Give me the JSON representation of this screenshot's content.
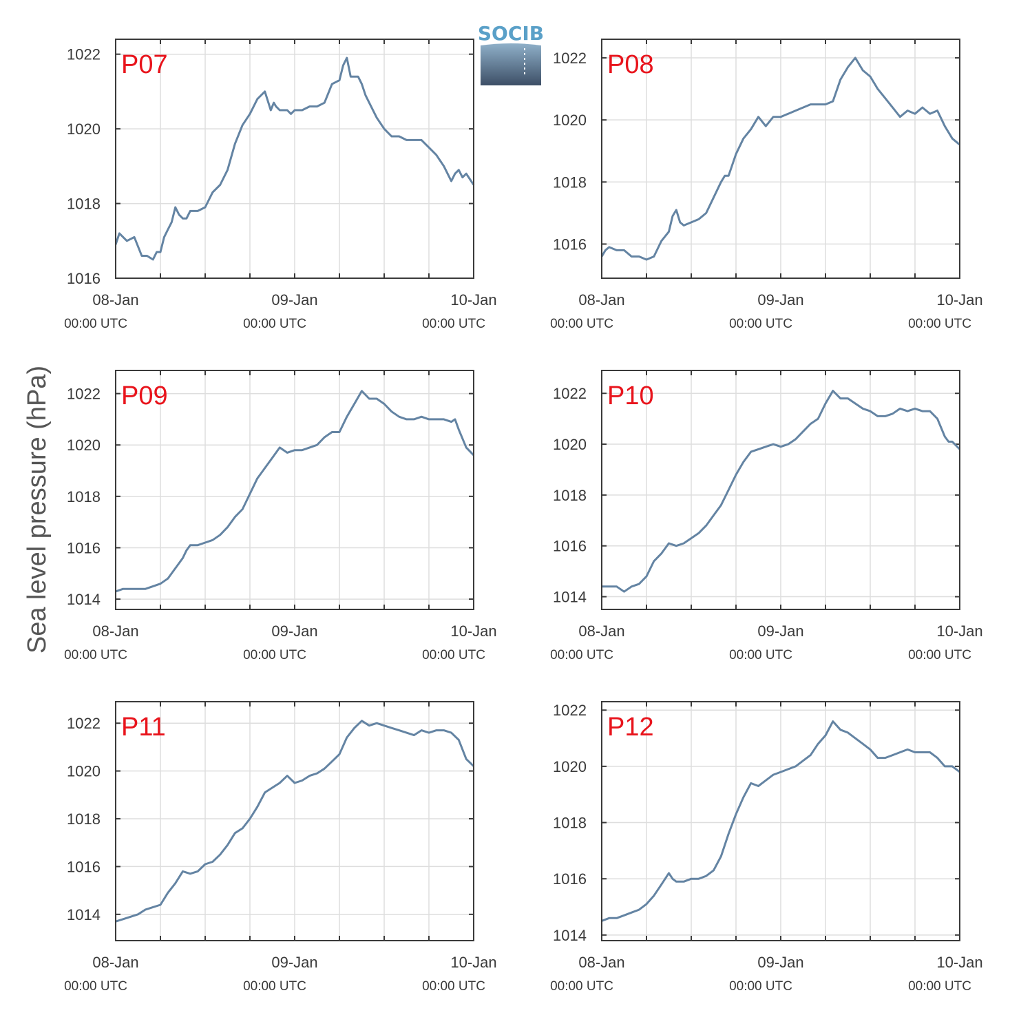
{
  "ylabel": "Sea level pressure (hPa)",
  "logo": {
    "text": "SOCIB"
  },
  "colors": {
    "line": "#6484a3",
    "panel_label": "#e8141c",
    "grid": "#dedede",
    "axis": "#3a3a3a"
  },
  "x_tick_labels": [
    {
      "day": "08-Jan",
      "time": "00:00 UTC"
    },
    {
      "day": "09-Jan",
      "time": "00:00 UTC"
    },
    {
      "day": "10-Jan",
      "time": "00:00 UTC"
    }
  ],
  "chart_data": [
    {
      "type": "line",
      "title": "P07",
      "x_unit": "hours since 08-Jan 00:00 UTC",
      "xlim": [
        0,
        48
      ],
      "ylim": [
        1016,
        1022.4
      ],
      "yticks": [
        1016,
        1018,
        1020,
        1022
      ],
      "x": [
        0,
        0.5,
        1.5,
        2.5,
        3.5,
        4.2,
        5,
        5.5,
        6,
        6.5,
        7,
        7.5,
        8,
        8.5,
        9,
        9.5,
        10,
        11,
        12,
        13,
        14,
        15,
        16,
        17,
        18,
        19,
        20,
        20.8,
        21.2,
        21.5,
        22,
        22.5,
        23,
        23.5,
        24,
        25,
        26,
        27,
        28,
        29,
        30,
        30.5,
        31,
        31.5,
        32,
        32.5,
        33,
        33.5,
        34,
        35,
        36,
        37,
        38,
        39,
        40,
        41,
        42,
        43,
        44,
        45,
        45.5,
        46,
        46.5,
        47,
        48
      ],
      "values": [
        1016.9,
        1017.2,
        1017.0,
        1017.1,
        1016.6,
        1016.6,
        1016.5,
        1016.7,
        1016.7,
        1017.1,
        1017.3,
        1017.5,
        1017.9,
        1017.7,
        1017.6,
        1017.6,
        1017.8,
        1017.8,
        1017.9,
        1018.3,
        1018.5,
        1018.9,
        1019.6,
        1020.1,
        1020.4,
        1020.8,
        1021.0,
        1020.5,
        1020.7,
        1020.6,
        1020.5,
        1020.5,
        1020.5,
        1020.4,
        1020.5,
        1020.5,
        1020.6,
        1020.6,
        1020.7,
        1021.2,
        1021.3,
        1021.7,
        1021.9,
        1021.4,
        1021.4,
        1021.4,
        1021.2,
        1020.9,
        1020.7,
        1020.3,
        1020.0,
        1019.8,
        1019.8,
        1019.7,
        1019.7,
        1019.7,
        1019.5,
        1019.3,
        1019.0,
        1018.6,
        1018.8,
        1018.9,
        1018.7,
        1018.8,
        1018.5
      ]
    },
    {
      "type": "line",
      "title": "P08",
      "x_unit": "hours since 08-Jan 00:00 UTC",
      "xlim": [
        0,
        48
      ],
      "ylim": [
        1014.9,
        1022.6
      ],
      "yticks": [
        1016,
        1018,
        1020,
        1022
      ],
      "x": [
        0,
        0.5,
        1,
        2,
        3,
        4,
        5,
        6,
        7,
        8,
        9,
        9.5,
        10,
        10.5,
        11,
        12,
        13,
        14,
        15,
        16,
        16.5,
        17,
        18,
        19,
        20,
        21,
        22,
        23,
        24,
        25,
        26,
        27,
        28,
        29,
        30,
        31,
        32,
        33,
        34,
        35,
        36,
        37,
        38,
        39,
        40,
        41,
        42,
        43,
        44,
        45,
        46,
        47,
        48
      ],
      "values": [
        1015.6,
        1015.8,
        1015.9,
        1015.8,
        1015.8,
        1015.6,
        1015.6,
        1015.5,
        1015.6,
        1016.1,
        1016.4,
        1016.9,
        1017.1,
        1016.7,
        1016.6,
        1016.7,
        1016.8,
        1017.0,
        1017.5,
        1018.0,
        1018.2,
        1018.2,
        1018.9,
        1019.4,
        1019.7,
        1020.1,
        1019.8,
        1020.1,
        1020.1,
        1020.2,
        1020.3,
        1020.4,
        1020.5,
        1020.5,
        1020.5,
        1020.6,
        1021.3,
        1021.7,
        1022.0,
        1021.6,
        1021.4,
        1021.0,
        1020.7,
        1020.4,
        1020.1,
        1020.3,
        1020.2,
        1020.4,
        1020.2,
        1020.3,
        1019.8,
        1019.4,
        1019.2
      ]
    },
    {
      "type": "line",
      "title": "P09",
      "x_unit": "hours since 08-Jan 00:00 UTC",
      "xlim": [
        0,
        48
      ],
      "ylim": [
        1013.6,
        1022.9
      ],
      "yticks": [
        1014,
        1016,
        1018,
        1020,
        1022
      ],
      "x": [
        0,
        1,
        2,
        3,
        4,
        5,
        6,
        7,
        8,
        9,
        9.5,
        10,
        11,
        12,
        13,
        14,
        15,
        16,
        17,
        18,
        19,
        20,
        21,
        22,
        23,
        24,
        25,
        26,
        27,
        28,
        29,
        30,
        31,
        32,
        33,
        34,
        35,
        36,
        37,
        38,
        39,
        40,
        41,
        42,
        43,
        44,
        45,
        45.5,
        46,
        47,
        48
      ],
      "values": [
        1014.3,
        1014.4,
        1014.4,
        1014.4,
        1014.4,
        1014.5,
        1014.6,
        1014.8,
        1015.2,
        1015.6,
        1015.9,
        1016.1,
        1016.1,
        1016.2,
        1016.3,
        1016.5,
        1016.8,
        1017.2,
        1017.5,
        1018.1,
        1018.7,
        1019.1,
        1019.5,
        1019.9,
        1019.7,
        1019.8,
        1019.8,
        1019.9,
        1020.0,
        1020.3,
        1020.5,
        1020.5,
        1021.1,
        1021.6,
        1022.1,
        1021.8,
        1021.8,
        1021.6,
        1021.3,
        1021.1,
        1021.0,
        1021.0,
        1021.1,
        1021.0,
        1021.0,
        1021.0,
        1020.9,
        1021.0,
        1020.6,
        1019.9,
        1019.6
      ]
    },
    {
      "type": "line",
      "title": "P10",
      "x_unit": "hours since 08-Jan 00:00 UTC",
      "xlim": [
        0,
        48
      ],
      "ylim": [
        1013.5,
        1022.9
      ],
      "yticks": [
        1014,
        1016,
        1018,
        1020,
        1022
      ],
      "x": [
        0,
        1,
        2,
        3,
        4,
        5,
        6,
        7,
        8,
        9,
        10,
        11,
        12,
        13,
        14,
        15,
        16,
        17,
        18,
        19,
        20,
        21,
        22,
        23,
        24,
        25,
        26,
        27,
        28,
        29,
        30,
        31,
        32,
        33,
        34,
        35,
        36,
        37,
        38,
        39,
        40,
        41,
        42,
        43,
        44,
        45,
        46,
        46.5,
        47,
        48
      ],
      "values": [
        1014.4,
        1014.4,
        1014.4,
        1014.2,
        1014.4,
        1014.5,
        1014.8,
        1015.4,
        1015.7,
        1016.1,
        1016.0,
        1016.1,
        1016.3,
        1016.5,
        1016.8,
        1017.2,
        1017.6,
        1018.2,
        1018.8,
        1019.3,
        1019.7,
        1019.8,
        1019.9,
        1020.0,
        1019.9,
        1020.0,
        1020.2,
        1020.5,
        1020.8,
        1021.0,
        1021.6,
        1022.1,
        1021.8,
        1021.8,
        1021.6,
        1021.4,
        1021.3,
        1021.1,
        1021.1,
        1021.2,
        1021.4,
        1021.3,
        1021.4,
        1021.3,
        1021.3,
        1021.0,
        1020.3,
        1020.1,
        1020.1,
        1019.8
      ]
    },
    {
      "type": "line",
      "title": "P11",
      "x_unit": "hours since 08-Jan 00:00 UTC",
      "xlim": [
        0,
        48
      ],
      "ylim": [
        1012.9,
        1022.9
      ],
      "yticks": [
        1014,
        1016,
        1018,
        1020,
        1022
      ],
      "x": [
        0,
        1,
        2,
        3,
        4,
        5,
        6,
        7,
        8,
        9,
        10,
        11,
        12,
        13,
        14,
        15,
        16,
        17,
        18,
        19,
        20,
        21,
        22,
        23,
        24,
        25,
        26,
        27,
        28,
        29,
        30,
        31,
        32,
        33,
        34,
        35,
        36,
        37,
        38,
        39,
        40,
        41,
        42,
        43,
        44,
        45,
        46,
        47,
        48
      ],
      "values": [
        1013.7,
        1013.8,
        1013.9,
        1014.0,
        1014.2,
        1014.3,
        1014.4,
        1014.9,
        1015.3,
        1015.8,
        1015.7,
        1015.8,
        1016.1,
        1016.2,
        1016.5,
        1016.9,
        1017.4,
        1017.6,
        1018.0,
        1018.5,
        1019.1,
        1019.3,
        1019.5,
        1019.8,
        1019.5,
        1019.6,
        1019.8,
        1019.9,
        1020.1,
        1020.4,
        1020.7,
        1021.4,
        1021.8,
        1022.1,
        1021.9,
        1022.0,
        1021.9,
        1021.8,
        1021.7,
        1021.6,
        1021.5,
        1021.7,
        1021.6,
        1021.7,
        1021.7,
        1021.6,
        1021.3,
        1020.5,
        1020.2
      ]
    },
    {
      "type": "line",
      "title": "P12",
      "x_unit": "hours since 08-Jan 00:00 UTC",
      "xlim": [
        0,
        48
      ],
      "ylim": [
        1013.8,
        1022.3
      ],
      "yticks": [
        1014,
        1016,
        1018,
        1020,
        1022
      ],
      "x": [
        0,
        1,
        2,
        3,
        4,
        5,
        6,
        7,
        8,
        9,
        9.5,
        10,
        11,
        12,
        13,
        14,
        15,
        16,
        17,
        18,
        19,
        20,
        21,
        22,
        23,
        24,
        25,
        26,
        27,
        28,
        29,
        30,
        31,
        32,
        33,
        34,
        35,
        36,
        37,
        38,
        39,
        40,
        41,
        42,
        43,
        44,
        45,
        46,
        47,
        48
      ],
      "values": [
        1014.5,
        1014.6,
        1014.6,
        1014.7,
        1014.8,
        1014.9,
        1015.1,
        1015.4,
        1015.8,
        1016.2,
        1016.0,
        1015.9,
        1015.9,
        1016.0,
        1016.0,
        1016.1,
        1016.3,
        1016.8,
        1017.6,
        1018.3,
        1018.9,
        1019.4,
        1019.3,
        1019.5,
        1019.7,
        1019.8,
        1019.9,
        1020.0,
        1020.2,
        1020.4,
        1020.8,
        1021.1,
        1021.6,
        1021.3,
        1021.2,
        1021.0,
        1020.8,
        1020.6,
        1020.3,
        1020.3,
        1020.4,
        1020.5,
        1020.6,
        1020.5,
        1020.5,
        1020.5,
        1020.3,
        1020.0,
        1020.0,
        1019.8
      ]
    }
  ]
}
